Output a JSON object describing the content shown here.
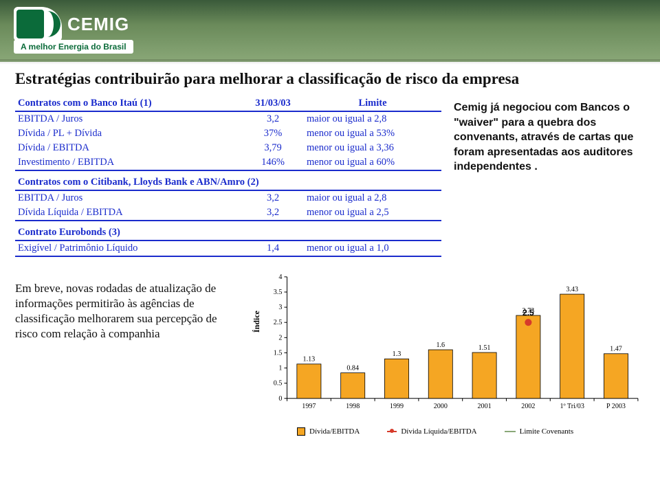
{
  "logo": {
    "name": "CEMIG",
    "tagline": "A melhor Energia do Brasil"
  },
  "page_title": "Estratégias contribuirão para melhorar a classificação de risco da empresa",
  "table1": {
    "header": {
      "name": "Contratos com o Banco Itaú (1)",
      "date": "31/03/03",
      "limit": "Limite"
    },
    "rows": [
      {
        "label": "EBITDA / Juros",
        "val": "3,2",
        "cond": "maior ou igual a 2,8"
      },
      {
        "label": "Dívida / PL + Dívida",
        "val": "37%",
        "cond": "menor ou igual a 53%"
      },
      {
        "label": "Dívida / EBITDA",
        "val": "3,79",
        "cond": "menor ou igual a 3,36"
      },
      {
        "label": "Investimento / EBITDA",
        "val": "146%",
        "cond": "menor ou igual a  60%"
      }
    ]
  },
  "table2": {
    "header": {
      "name": "Contratos com o Citibank, Lloyds Bank e ABN/Amro (2)"
    },
    "rows": [
      {
        "label": "EBITDA / Juros",
        "val": "3,2",
        "cond": "maior ou igual a 2,8"
      },
      {
        "label": "Dívida Líquida / EBITDA",
        "val": "3,2",
        "cond": "menor ou igual a  2,5"
      }
    ]
  },
  "table3": {
    "header": {
      "name": "Contrato Eurobonds (3)"
    },
    "rows": [
      {
        "label": "Exigível / Patrimônio Líquido",
        "val": "1,4",
        "cond": "menor ou igual a  1,0"
      }
    ]
  },
  "right_note": "Cemig já negociou com Bancos  o \"waiver\"  para a quebra dos convenants, através de cartas que foram apresentadas aos auditores independentes .",
  "left_paragraph": "Em breve, novas rodadas de atualização de informações permitirão às agências de classificação melhorarem sua percepção de risco com relação à companhia",
  "chart": {
    "type": "bar+line+line",
    "y_axis_label": "Índice",
    "ylim": [
      0,
      4
    ],
    "ytick_step": 0.5,
    "categories": [
      "1997",
      "1998",
      "1999",
      "2000",
      "2001",
      "2002",
      "1º Tri/03",
      "P 2003"
    ],
    "bar": {
      "name": "Dívida/EBITDA",
      "color": "#f5a623",
      "border": "#000000",
      "values": [
        1.13,
        0.84,
        1.3,
        1.6,
        1.51,
        2.73,
        3.43,
        1.47
      ],
      "show_value_labels": true,
      "label_fontsize": 10
    },
    "line1": {
      "name": "Dívida Líquida/EBITDA",
      "color": "#d63a2a",
      "marker": "circle",
      "marker_size": 5,
      "values": [
        null,
        null,
        null,
        null,
        null,
        2.5,
        null,
        null
      ],
      "show_value_labels": true,
      "label": "2.5",
      "label_fontsize": 12,
      "label_bold": true
    },
    "line2": {
      "name": "Limite Covenants",
      "color": "#8aa878",
      "style": "solid",
      "values": [
        null,
        null,
        null,
        null,
        null,
        null,
        null,
        null
      ]
    },
    "axis_fontsize": 10,
    "background_color": "#ffffff",
    "bar_width": 0.55
  }
}
